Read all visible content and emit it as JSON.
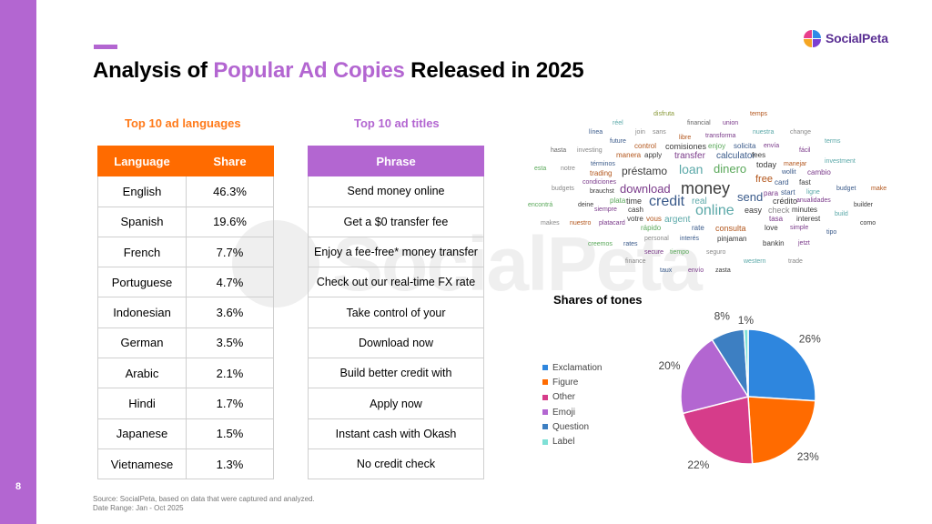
{
  "page_number": "8",
  "title": {
    "pre": "Analysis of ",
    "highlight": "Popular Ad Copies",
    "post": " Released in 2025"
  },
  "logo": {
    "text": "SocialPeta",
    "colors": [
      "#e83e8c",
      "#2f8ae8",
      "#f5a623",
      "#7b3fd1"
    ]
  },
  "watermark": "SocialPeta",
  "languages": {
    "label": "Top 10 ad languages",
    "headers": [
      "Language",
      "Share"
    ],
    "rows": [
      [
        "English",
        "46.3%"
      ],
      [
        "Spanish",
        "19.6%"
      ],
      [
        "French",
        "7.7%"
      ],
      [
        "Portuguese",
        "4.7%"
      ],
      [
        "Indonesian",
        "3.6%"
      ],
      [
        "German",
        "3.5%"
      ],
      [
        "Arabic",
        "2.1%"
      ],
      [
        "Hindi",
        "1.7%"
      ],
      [
        "Japanese",
        "1.5%"
      ],
      [
        "Vietnamese",
        "1.3%"
      ]
    ]
  },
  "titles": {
    "label": "Top 10 ad titles",
    "header": "Phrase",
    "rows": [
      "Send money online",
      "Get a $0 transfer fee",
      "Enjoy a fee-free* money transfer",
      "Check out our real-time FX rate",
      "Take control of your",
      "Download now",
      "Build better credit with",
      "Apply now",
      "Instant cash with Okash",
      "No credit check"
    ]
  },
  "wordcloud": [
    {
      "t": "disfruta",
      "c": "#8a9a3a"
    },
    {
      "t": "temps",
      "c": "#b3561c"
    },
    {
      "t": "réel",
      "c": "#5aa8a8"
    },
    {
      "t": "financial",
      "c": "#666"
    },
    {
      "t": "union",
      "c": "#7a3a8a"
    },
    {
      "t": "línea",
      "c": "#3a5a8a"
    },
    {
      "t": "join",
      "c": "#888"
    },
    {
      "t": "sans",
      "c": "#888"
    },
    {
      "t": "libre",
      "c": "#b3561c"
    },
    {
      "t": "transforma",
      "c": "#7a3a8a"
    },
    {
      "t": "nuestra",
      "c": "#5aa8a8"
    },
    {
      "t": "change",
      "c": "#888"
    },
    {
      "t": "future",
      "c": "#3a5a8a"
    },
    {
      "t": "control",
      "c": "#b3561c"
    },
    {
      "t": "comisiones",
      "c": "#3a3a3a"
    },
    {
      "t": "enjoy",
      "c": "#5aa85a"
    },
    {
      "t": "solicita",
      "c": "#3a5a8a"
    },
    {
      "t": "envía",
      "c": "#7a3a8a"
    },
    {
      "t": "terms",
      "c": "#5aa8a8"
    },
    {
      "t": "hasta",
      "c": "#666"
    },
    {
      "t": "investing",
      "c": "#888"
    },
    {
      "t": "manera",
      "c": "#b3561c"
    },
    {
      "t": "apply",
      "c": "#3a3a3a"
    },
    {
      "t": "transfer",
      "c": "#7a3a8a"
    },
    {
      "t": "calculator",
      "c": "#3a5a8a"
    },
    {
      "t": "fees",
      "c": "#3a3a3a"
    },
    {
      "t": "fácil",
      "c": "#7a3a8a"
    },
    {
      "t": "términos",
      "c": "#3a5a8a"
    },
    {
      "t": "today",
      "c": "#3a3a3a"
    },
    {
      "t": "manejar",
      "c": "#b3561c"
    },
    {
      "t": "investment",
      "c": "#5aa8a8"
    },
    {
      "t": "esta",
      "c": "#5aa85a"
    },
    {
      "t": "notre",
      "c": "#888"
    },
    {
      "t": "trading",
      "c": "#b3561c"
    },
    {
      "t": "préstamo",
      "c": "#3a3a3a"
    },
    {
      "t": "loan",
      "c": "#5aa8a8"
    },
    {
      "t": "dinero",
      "c": "#5aa85a"
    },
    {
      "t": "wollit",
      "c": "#3a5a8a"
    },
    {
      "t": "cambio",
      "c": "#7a3a8a"
    },
    {
      "t": "condiciones",
      "c": "#7a3a8a"
    },
    {
      "t": "free",
      "c": "#b3561c"
    },
    {
      "t": "card",
      "c": "#3a5a8a"
    },
    {
      "t": "fast",
      "c": "#3a3a3a"
    },
    {
      "t": "budgets",
      "c": "#888"
    },
    {
      "t": "brauchst",
      "c": "#3a3a3a"
    },
    {
      "t": "download",
      "c": "#7a3a8a"
    },
    {
      "t": "money",
      "c": "#3a3a3a"
    },
    {
      "t": "para",
      "c": "#7a3a8a"
    },
    {
      "t": "start",
      "c": "#3a5a8a"
    },
    {
      "t": "ligne",
      "c": "#5aa8a8"
    },
    {
      "t": "budget",
      "c": "#3a5a8a"
    },
    {
      "t": "make",
      "c": "#b3561c"
    },
    {
      "t": "plata",
      "c": "#5aa85a"
    },
    {
      "t": "time",
      "c": "#3a3a3a"
    },
    {
      "t": "send",
      "c": "#3a5a8a"
    },
    {
      "t": "crédito",
      "c": "#3a3a3a"
    },
    {
      "t": "anualidades",
      "c": "#7a3a8a"
    },
    {
      "t": "encontrá",
      "c": "#5aa85a"
    },
    {
      "t": "deine",
      "c": "#3a3a3a"
    },
    {
      "t": "credit",
      "c": "#3a5a8a"
    },
    {
      "t": "real",
      "c": "#5aa8a8"
    },
    {
      "t": "builder",
      "c": "#3a3a3a"
    },
    {
      "t": "siempre",
      "c": "#7a3a8a"
    },
    {
      "t": "cash",
      "c": "#3a3a3a"
    },
    {
      "t": "online",
      "c": "#5aa8a8"
    },
    {
      "t": "easy",
      "c": "#3a3a3a"
    },
    {
      "t": "check",
      "c": "#888"
    },
    {
      "t": "minutes",
      "c": "#3a3a3a"
    },
    {
      "t": "build",
      "c": "#5aa8a8"
    },
    {
      "t": "votre",
      "c": "#3a3a3a"
    },
    {
      "t": "vous",
      "c": "#b3561c"
    },
    {
      "t": "argent",
      "c": "#5aa8a8"
    },
    {
      "t": "tasa",
      "c": "#7a3a8a"
    },
    {
      "t": "interest",
      "c": "#3a3a3a"
    },
    {
      "t": "makes",
      "c": "#888"
    },
    {
      "t": "nuestro",
      "c": "#b3561c"
    },
    {
      "t": "platacard",
      "c": "#7a3a8a"
    },
    {
      "t": "rápido",
      "c": "#5aa85a"
    },
    {
      "t": "rate",
      "c": "#3a5a8a"
    },
    {
      "t": "consulta",
      "c": "#b3561c"
    },
    {
      "t": "love",
      "c": "#3a3a3a"
    },
    {
      "t": "simple",
      "c": "#7a3a8a"
    },
    {
      "t": "como",
      "c": "#3a3a3a"
    },
    {
      "t": "personal",
      "c": "#888"
    },
    {
      "t": "interés",
      "c": "#3a5a8a"
    },
    {
      "t": "pinjaman",
      "c": "#3a3a3a"
    },
    {
      "t": "tipo",
      "c": "#3a5a8a"
    },
    {
      "t": "creemos",
      "c": "#5aa85a"
    },
    {
      "t": "rates",
      "c": "#3a5a8a"
    },
    {
      "t": "bankin",
      "c": "#3a3a3a"
    },
    {
      "t": "jetzt",
      "c": "#7a3a8a"
    },
    {
      "t": "secure",
      "c": "#7a3a8a"
    },
    {
      "t": "tiempo",
      "c": "#5aa85a"
    },
    {
      "t": "seguro",
      "c": "#888"
    },
    {
      "t": "finance",
      "c": "#888"
    },
    {
      "t": "western",
      "c": "#5aa8a8"
    },
    {
      "t": "trade",
      "c": "#888"
    },
    {
      "t": "taux",
      "c": "#3a5a8a"
    },
    {
      "t": "envío",
      "c": "#7a3a8a"
    },
    {
      "t": "zasta",
      "c": "#3a3a3a"
    }
  ],
  "chart_data": {
    "type": "pie",
    "title": "Shares of tones",
    "legend_position": "left",
    "categories": [
      "Exclamation",
      "Figure",
      "Other",
      "Emoji",
      "Question",
      "Label"
    ],
    "values": [
      26,
      23,
      22,
      20,
      8,
      1
    ],
    "labels": [
      "26%",
      "23%",
      "22%",
      "20%",
      "8%",
      "1%"
    ],
    "colors": [
      "#2e86de",
      "#ff6b00",
      "#d63c8a",
      "#b366d1",
      "#3d7fc2",
      "#7fe0d6"
    ]
  },
  "footer": {
    "source": "Source: SocialPeta, based on data that were captured and analyzed.",
    "range": "Date Range: Jan - Oct 2025"
  }
}
